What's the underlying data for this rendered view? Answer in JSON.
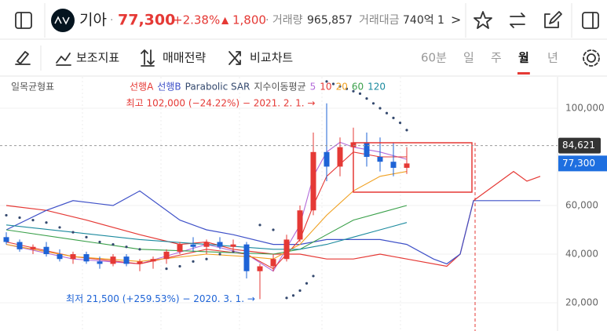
{
  "header": {
    "name": "기아",
    "dot": "·",
    "price": "77,300",
    "change_pct": "+2.38%",
    "arrow": "▲",
    "change": "1,800",
    "volume_label": "· 거래량",
    "volume": "965,857",
    "value_label": "거래대금",
    "value": "740억 1",
    "more": ">"
  },
  "toolbar": {
    "buttons": [
      "보조지표",
      "매매전략",
      "비교차트"
    ],
    "periods": [
      "60분",
      "일",
      "주",
      "월",
      "년"
    ],
    "active_period": 3
  },
  "chart_data": {
    "type": "candlestick",
    "title": "일목균형표",
    "indicator_label": "지수이동평균",
    "xlim": [
      0,
      82
    ],
    "ylim": [
      8400,
      112900
    ],
    "yticks": [
      {
        "value": 20000,
        "label": "20,000"
      },
      {
        "value": 40000,
        "label": "40,000"
      },
      {
        "value": 60000,
        "label": "60,000"
      },
      {
        "value": 100000,
        "label": "100,000"
      }
    ],
    "grid": true,
    "up_color": "#e53935",
    "down_color": "#1e63d6",
    "candles": {
      "x": [
        0,
        2,
        4,
        6,
        8,
        10,
        12,
        14,
        16,
        18,
        20,
        22,
        24,
        26,
        28,
        30,
        32,
        34,
        36,
        38,
        40,
        42,
        44,
        46,
        48,
        50,
        52,
        54,
        56,
        58,
        60
      ],
      "open": [
        47000,
        45000,
        42000,
        43000,
        40000,
        38000,
        40000,
        37000,
        36000,
        39000,
        36000,
        37000,
        38000,
        41000,
        44000,
        43000,
        45000,
        43000,
        44000,
        33000,
        35000,
        38000,
        46000,
        58000,
        82000,
        76000,
        84000,
        86000,
        80000,
        78000,
        75500
      ],
      "high": [
        49000,
        46000,
        44000,
        45000,
        42000,
        41000,
        41000,
        39000,
        40000,
        40000,
        38000,
        39000,
        42000,
        45000,
        47000,
        46000,
        47000,
        46000,
        45000,
        36000,
        40000,
        48000,
        60000,
        90000,
        102000,
        88000,
        92000,
        90000,
        88000,
        86000,
        84000
      ],
      "low": [
        44000,
        41000,
        40000,
        39000,
        37000,
        36000,
        36000,
        34000,
        35000,
        35000,
        33000,
        34000,
        36000,
        40000,
        41000,
        40000,
        42000,
        41000,
        30000,
        21500,
        33000,
        37000,
        45000,
        56000,
        70000,
        72000,
        78000,
        76000,
        74000,
        72000,
        73000
      ],
      "close": [
        45000,
        42000,
        43000,
        40000,
        38000,
        40000,
        37000,
        36000,
        39000,
        36000,
        37000,
        38000,
        41000,
        44000,
        43000,
        45000,
        43000,
        44000,
        33000,
        35000,
        38000,
        46000,
        58000,
        82000,
        76000,
        84000,
        86000,
        80000,
        78000,
        75500,
        77300
      ]
    },
    "cloud": [
      {
        "name": "선행A",
        "color": "#e53935",
        "x": [
          0,
          6,
          12,
          20,
          26,
          30,
          34,
          40,
          44,
          48,
          52,
          56,
          60,
          66,
          68,
          70,
          72,
          74,
          76,
          78,
          80
        ],
        "values": [
          60000,
          58000,
          54000,
          48000,
          44000,
          45000,
          42000,
          40000,
          40000,
          38000,
          38000,
          40000,
          38000,
          35000,
          40000,
          62000,
          66000,
          70000,
          74000,
          70000,
          72000
        ]
      },
      {
        "name": "선행B",
        "color": "#3f51c8",
        "x": [
          0,
          6,
          10,
          16,
          20,
          26,
          30,
          34,
          40,
          44,
          48,
          56,
          60,
          64,
          66,
          68,
          70,
          72,
          80
        ],
        "values": [
          50000,
          58000,
          62000,
          60000,
          66000,
          54000,
          50000,
          48000,
          44000,
          44000,
          46000,
          46000,
          44000,
          38000,
          36000,
          40000,
          62000,
          62000,
          62000
        ]
      }
    ],
    "sar": {
      "name": "Parabolic SAR",
      "color": "#34496e",
      "x": [
        0,
        2,
        4,
        6,
        8,
        10,
        12,
        14,
        16,
        18,
        20,
        24,
        26,
        28,
        30,
        32,
        34,
        38,
        40,
        42,
        43,
        44,
        45,
        46,
        48,
        49,
        50,
        51,
        52,
        53,
        54,
        55,
        56,
        57,
        58,
        59,
        60
      ],
      "values": [
        56000,
        55000,
        54000,
        53000,
        51000,
        49000,
        47000,
        45000,
        44000,
        43000,
        42000,
        34000,
        35000,
        37000,
        38000,
        40000,
        41000,
        52000,
        50000,
        22000,
        23000,
        25000,
        28000,
        31000,
        111000,
        110000,
        109000,
        108000,
        107000,
        106000,
        104000,
        102000,
        100000,
        98000,
        96000,
        94000,
        91000
      ]
    },
    "series": [
      {
        "name": "5",
        "color": "#b36bd9",
        "x": [
          0,
          10,
          20,
          30,
          36,
          40,
          44,
          46,
          48,
          50,
          52,
          56,
          60
        ],
        "values": [
          44000,
          38000,
          36000,
          44000,
          40000,
          33000,
          52000,
          72000,
          82000,
          86000,
          84000,
          82000,
          79000
        ]
      },
      {
        "name": "10",
        "color": "#e53935",
        "x": [
          0,
          10,
          20,
          30,
          36,
          40,
          44,
          46,
          48,
          52,
          56,
          60
        ],
        "values": [
          45000,
          39000,
          36000,
          42000,
          40000,
          34000,
          46000,
          60000,
          72000,
          82000,
          80000,
          80000
        ]
      },
      {
        "name": "20",
        "color": "#f0a020",
        "x": [
          0,
          10,
          20,
          30,
          36,
          40,
          44,
          48,
          52,
          56,
          60
        ],
        "values": [
          44000,
          39000,
          37000,
          40000,
          39000,
          38000,
          44000,
          56000,
          66000,
          72000,
          74000
        ]
      },
      {
        "name": "60",
        "color": "#3aa04a",
        "x": [
          0,
          10,
          20,
          30,
          40,
          44,
          48,
          52,
          56,
          60
        ],
        "values": [
          50000,
          46000,
          42000,
          41000,
          40000,
          42000,
          48000,
          54000,
          57000,
          60000
        ]
      },
      {
        "name": "120",
        "color": "#1b8a9e",
        "x": [
          0,
          10,
          20,
          30,
          40,
          44,
          48,
          52,
          56,
          60
        ],
        "values": [
          52000,
          49000,
          46000,
          44000,
          42000,
          42000,
          44000,
          47000,
          50000,
          53000
        ]
      }
    ],
    "ref_line": {
      "value": 84621,
      "label": "84,621"
    },
    "last_price": {
      "value": 77300,
      "label": "77,300"
    },
    "annotations": [
      {
        "text": "최고 102,000 (−24.22%) − 2021. 2. 1. →",
        "color": "#e53935",
        "x": 47,
        "value": 102000
      },
      {
        "text": "최저 21,500 (+259.53%) − 2020. 3. 1. →",
        "color": "#1e63d6",
        "x": 38,
        "value": 21500
      }
    ]
  }
}
